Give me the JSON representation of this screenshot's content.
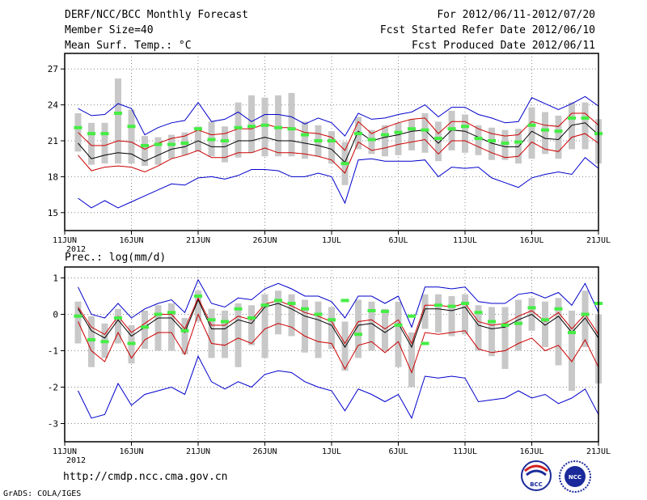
{
  "header": {
    "title": "DERF/NCC/BCC Monthly Forecast",
    "member_size": "Member Size=40",
    "variable_top": "Mean Surf. Temp.: °C",
    "period": "For 2012/06/11-2012/07/20",
    "fcst_started": "Fcst Started Refer Date 2012/06/10",
    "fcst_produced": "Fcst Produced Date 2012/06/11"
  },
  "footer": {
    "url": "http://cmdp.ncc.cma.gov.cn",
    "grads": "GrADS: COLA/IGES",
    "logo_bcc": "BCC",
    "logo_ncc": "NCC"
  },
  "colors": {
    "mean": "#000000",
    "spread": "#cc0000",
    "range": "#0000cc",
    "observed": "#44ee44",
    "box": "#c8c8c8",
    "grid": "#888888"
  },
  "chart_data": [
    {
      "type": "line",
      "title": "Mean Surf. Temp.: °C",
      "year_label": "2012",
      "ylim": [
        13.5,
        28.3
      ],
      "yticks": [
        15,
        18,
        21,
        24,
        27
      ],
      "xticks": [
        {
          "day": 0,
          "label": "11JUN"
        },
        {
          "day": 5,
          "label": "16JUN"
        },
        {
          "day": 10,
          "label": "21JUN"
        },
        {
          "day": 15,
          "label": "26JUN"
        },
        {
          "day": 20,
          "label": "1JUL"
        },
        {
          "day": 25,
          "label": "6JUL"
        },
        {
          "day": 30,
          "label": "11JUL"
        },
        {
          "day": 35,
          "label": "16JUL"
        },
        {
          "day": 40,
          "label": "21JUL"
        }
      ],
      "days": [
        1,
        2,
        3,
        4,
        5,
        6,
        7,
        8,
        9,
        10,
        11,
        12,
        13,
        14,
        15,
        16,
        17,
        18,
        19,
        20,
        21,
        22,
        23,
        24,
        25,
        26,
        27,
        28,
        29,
        30,
        31,
        32,
        33,
        34,
        35,
        36,
        37,
        38,
        39,
        40
      ],
      "series": [
        {
          "name": "ensemble-mean",
          "values": [
            20.8,
            19.5,
            19.8,
            20.0,
            19.9,
            19.3,
            19.8,
            20.3,
            20.5,
            21.0,
            20.5,
            20.5,
            21.0,
            21.0,
            21.3,
            21.0,
            21.0,
            20.8,
            20.6,
            20.3,
            19.2,
            21.8,
            21.0,
            21.3,
            21.5,
            21.8,
            21.9,
            20.8,
            21.9,
            21.8,
            21.3,
            20.8,
            20.5,
            20.5,
            21.8,
            21.2,
            21.1,
            22.3,
            22.5,
            21.5
          ]
        },
        {
          "name": "mean-plus-std",
          "values": [
            21.7,
            20.6,
            20.6,
            21.0,
            20.9,
            20.3,
            20.8,
            21.2,
            21.4,
            21.9,
            21.5,
            21.6,
            22.0,
            22.0,
            22.4,
            22.1,
            22.1,
            21.7,
            21.6,
            21.3,
            20.2,
            22.6,
            21.6,
            22.1,
            22.5,
            22.8,
            22.9,
            21.6,
            22.6,
            22.6,
            22.0,
            21.6,
            21.4,
            21.5,
            22.6,
            22.3,
            22.2,
            23.3,
            23.3,
            22.3
          ]
        },
        {
          "name": "mean-minus-std",
          "values": [
            19.8,
            18.5,
            18.8,
            18.9,
            18.8,
            18.4,
            18.9,
            19.5,
            19.8,
            20.2,
            19.6,
            19.6,
            20.0,
            20.0,
            20.4,
            20.0,
            20.0,
            19.9,
            19.7,
            19.4,
            18.3,
            20.9,
            20.2,
            20.4,
            20.7,
            20.9,
            21.1,
            19.9,
            21.0,
            21.0,
            20.5,
            20.0,
            19.6,
            19.7,
            20.9,
            20.3,
            20.1,
            21.3,
            21.6,
            20.8
          ]
        },
        {
          "name": "ensemble-max",
          "values": [
            23.7,
            23.1,
            23.2,
            24.1,
            23.7,
            21.5,
            22.1,
            22.5,
            22.7,
            24.2,
            22.6,
            22.8,
            23.4,
            22.6,
            23.2,
            23.2,
            23.0,
            22.4,
            22.9,
            22.5,
            21.4,
            23.3,
            22.8,
            22.9,
            23.2,
            23.4,
            24.0,
            23.0,
            23.8,
            23.8,
            23.2,
            22.9,
            22.5,
            22.6,
            24.6,
            24.1,
            23.6,
            24.1,
            24.7,
            23.9
          ]
        },
        {
          "name": "ensemble-min",
          "values": [
            16.2,
            15.4,
            16.0,
            15.4,
            15.9,
            16.4,
            16.9,
            17.4,
            17.3,
            17.9,
            18.0,
            17.8,
            18.1,
            18.6,
            18.6,
            18.5,
            18.0,
            18.0,
            18.3,
            18.0,
            15.8,
            19.4,
            19.5,
            19.3,
            19.3,
            19.3,
            19.4,
            18.0,
            18.8,
            18.7,
            18.8,
            17.9,
            17.5,
            17.1,
            17.9,
            18.2,
            18.4,
            18.2,
            19.6,
            18.7
          ]
        },
        {
          "name": "observed",
          "values": [
            22.1,
            21.6,
            21.6,
            23.3,
            22.2,
            20.6,
            20.7,
            20.7,
            20.8,
            22.0,
            21.1,
            21.0,
            22.1,
            22.2,
            22.3,
            22.1,
            22.0,
            21.5,
            21.0,
            21.0,
            19.1,
            21.6,
            21.1,
            21.5,
            21.7,
            22.0,
            21.9,
            21.2,
            22.0,
            22.2,
            21.2,
            21.0,
            20.8,
            20.9,
            22.3,
            21.9,
            21.8,
            22.9,
            22.9,
            21.6
          ]
        }
      ],
      "box_low": [
        20.1,
        19.0,
        19.1,
        19.1,
        19.1,
        18.9,
        19.0,
        19.5,
        19.8,
        20.1,
        19.7,
        19.2,
        19.6,
        20.0,
        19.7,
        19.7,
        19.7,
        19.5,
        19.7,
        19.1,
        17.3,
        20.3,
        19.9,
        19.7,
        19.8,
        20.2,
        20.0,
        19.3,
        20.2,
        20.0,
        19.8,
        19.4,
        19.4,
        19.1,
        19.5,
        19.9,
        19.5,
        20.3,
        20.3,
        19.1
      ],
      "box_high": [
        23.3,
        22.5,
        22.5,
        26.2,
        23.6,
        21.4,
        21.3,
        21.5,
        21.7,
        22.2,
        22.6,
        22.2,
        24.2,
        24.8,
        24.6,
        24.8,
        25.0,
        22.6,
        22.3,
        21.8,
        20.9,
        23.0,
        21.9,
        22.3,
        22.5,
        22.8,
        23.3,
        22.6,
        23.5,
        23.2,
        22.3,
        22.1,
        21.9,
        22.0,
        23.8,
        23.4,
        23.1,
        24.2,
        24.2,
        22.8
      ]
    },
    {
      "type": "line",
      "title": "Prec.: log(mm/d)",
      "year_label": "2012",
      "ylim": [
        -3.5,
        1.3
      ],
      "yticks": [
        -3,
        -2,
        -1,
        0,
        1
      ],
      "xticks": [
        {
          "day": 0,
          "label": "11JUN"
        },
        {
          "day": 5,
          "label": "16JUN"
        },
        {
          "day": 10,
          "label": "21JUN"
        },
        {
          "day": 15,
          "label": "26JUN"
        },
        {
          "day": 20,
          "label": "1JUL"
        },
        {
          "day": 25,
          "label": "6JUL"
        },
        {
          "day": 30,
          "label": "11JUL"
        },
        {
          "day": 35,
          "label": "16JUL"
        },
        {
          "day": 40,
          "label": "21JUL"
        }
      ],
      "days": [
        1,
        2,
        3,
        4,
        5,
        6,
        7,
        8,
        9,
        10,
        11,
        12,
        13,
        14,
        15,
        16,
        17,
        18,
        19,
        20,
        21,
        22,
        23,
        24,
        25,
        26,
        27,
        28,
        29,
        30,
        31,
        32,
        33,
        34,
        35,
        36,
        37,
        38,
        39,
        40
      ],
      "series": [
        {
          "name": "ensemble-mean",
          "values": [
            0.15,
            -0.45,
            -0.65,
            -0.15,
            -0.6,
            -0.35,
            -0.1,
            -0.1,
            -0.5,
            0.4,
            -0.4,
            -0.4,
            -0.15,
            -0.25,
            0.2,
            0.3,
            0.15,
            -0.05,
            -0.15,
            -0.3,
            -0.9,
            -0.3,
            -0.25,
            -0.5,
            -0.25,
            -0.9,
            0.15,
            0.15,
            0.1,
            0.2,
            -0.3,
            -0.4,
            -0.35,
            -0.15,
            0.0,
            -0.3,
            -0.05,
            -0.5,
            -0.1,
            -0.65
          ]
        },
        {
          "name": "mean-plus-std",
          "values": [
            0.2,
            -0.35,
            -0.55,
            -0.05,
            -0.5,
            -0.25,
            0.0,
            0.0,
            -0.4,
            0.45,
            -0.3,
            -0.3,
            -0.05,
            -0.15,
            0.28,
            0.38,
            0.23,
            0.05,
            -0.05,
            -0.2,
            -0.8,
            -0.2,
            -0.15,
            -0.4,
            -0.15,
            -0.8,
            0.25,
            0.25,
            0.2,
            0.3,
            -0.2,
            -0.3,
            -0.25,
            -0.05,
            0.1,
            -0.2,
            0.05,
            -0.4,
            0.0,
            -0.55
          ]
        },
        {
          "name": "mean-minus-std",
          "values": [
            -0.2,
            -1.0,
            -1.3,
            -0.5,
            -1.2,
            -0.7,
            -0.5,
            -0.5,
            -1.1,
            0.0,
            -0.8,
            -0.85,
            -0.65,
            -0.8,
            -0.4,
            -0.25,
            -0.35,
            -0.6,
            -0.75,
            -0.8,
            -1.5,
            -0.85,
            -0.75,
            -1.05,
            -0.75,
            -1.6,
            -0.5,
            -0.55,
            -0.5,
            -0.45,
            -0.95,
            -1.05,
            -1.0,
            -0.8,
            -0.65,
            -1.0,
            -0.85,
            -1.3,
            -0.7,
            -1.45
          ]
        },
        {
          "name": "ensemble-max",
          "values": [
            0.75,
            0.0,
            -0.1,
            0.3,
            -0.1,
            0.15,
            0.3,
            0.4,
            0.05,
            0.95,
            0.3,
            0.2,
            0.45,
            0.4,
            0.7,
            0.85,
            0.7,
            0.5,
            0.5,
            0.35,
            -0.1,
            0.5,
            0.5,
            0.3,
            0.5,
            -0.35,
            0.75,
            0.75,
            0.7,
            0.75,
            0.35,
            0.3,
            0.3,
            0.55,
            0.6,
            0.45,
            0.6,
            0.25,
            0.85,
            0.05
          ]
        },
        {
          "name": "ensemble-min",
          "values": [
            -2.1,
            -2.85,
            -2.75,
            -1.9,
            -2.5,
            -2.2,
            -2.1,
            -2.0,
            -2.2,
            -1.15,
            -1.85,
            -2.05,
            -1.85,
            -2.0,
            -1.65,
            -1.55,
            -1.6,
            -1.85,
            -2.0,
            -2.1,
            -2.65,
            -2.05,
            -2.2,
            -2.4,
            -2.2,
            -2.85,
            -1.7,
            -1.75,
            -1.7,
            -1.75,
            -2.4,
            -2.35,
            -2.3,
            -2.1,
            -2.3,
            -2.2,
            -2.45,
            -2.3,
            -2.05,
            -2.75
          ]
        },
        {
          "name": "observed",
          "values": [
            -0.05,
            -0.7,
            -0.75,
            -0.1,
            -0.8,
            -0.35,
            0.0,
            0.05,
            -0.45,
            0.5,
            -0.15,
            -0.2,
            0.15,
            -0.1,
            0.25,
            0.38,
            0.3,
            0.15,
            0.0,
            -0.15,
            0.38,
            -0.55,
            0.1,
            0.08,
            -0.3,
            -0.05,
            -0.8,
            0.25,
            0.22,
            0.3,
            0.05,
            -0.2,
            -0.3,
            -0.25,
            0.18,
            -0.15,
            0.15,
            -0.5,
            0.0,
            0.3
          ]
        }
      ],
      "box_low": [
        -0.8,
        -1.45,
        -1.2,
        -0.8,
        -1.35,
        -0.95,
        -1.0,
        -1.0,
        -1.1,
        -0.2,
        -1.2,
        -1.2,
        -1.45,
        -0.85,
        -1.2,
        -0.55,
        -0.6,
        -1.05,
        -1.2,
        -0.95,
        -1.55,
        -1.2,
        -1.0,
        -1.0,
        -1.45,
        -2.0,
        -0.4,
        -0.5,
        -0.6,
        -0.55,
        -1.0,
        -1.15,
        -1.5,
        -1.0,
        -0.45,
        -0.9,
        -1.4,
        -2.1,
        -0.9,
        -1.9
      ],
      "box_high": [
        0.35,
        -0.05,
        -0.25,
        0.15,
        -0.3,
        0.1,
        0.25,
        0.3,
        -0.1,
        0.65,
        0.15,
        0.1,
        0.3,
        0.25,
        0.55,
        0.65,
        0.55,
        0.4,
        0.35,
        0.2,
        -0.2,
        0.4,
        0.35,
        0.15,
        0.35,
        -0.5,
        0.55,
        0.55,
        0.5,
        0.55,
        0.25,
        0.2,
        0.2,
        0.4,
        0.45,
        0.35,
        0.45,
        0.1,
        0.65,
        0.0
      ]
    }
  ]
}
